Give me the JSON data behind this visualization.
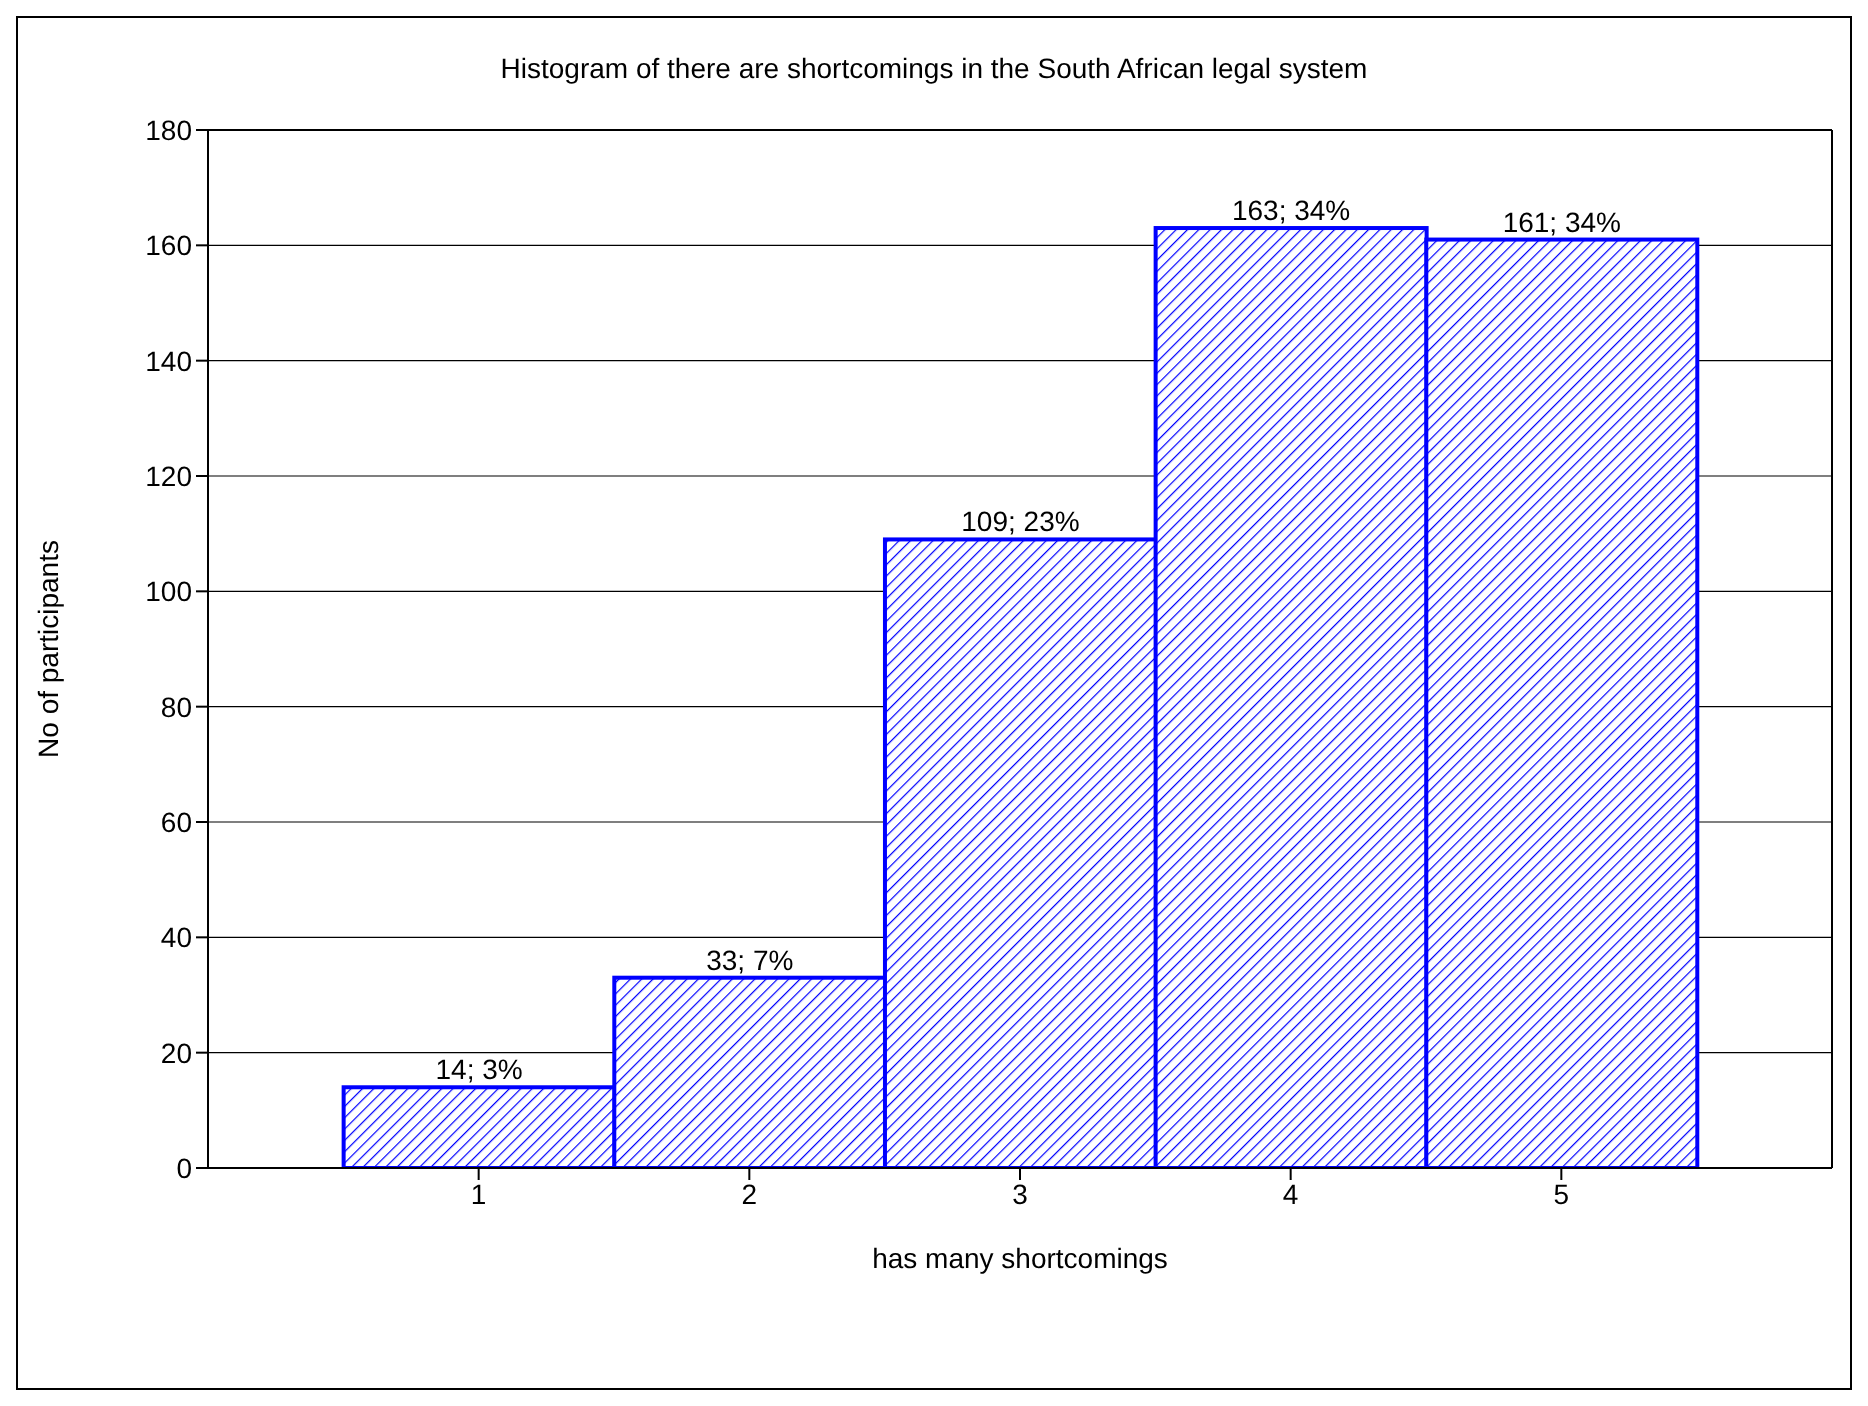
{
  "chart_data": {
    "type": "histogram",
    "title": "Histogram of there are shortcomings in the South African legal system",
    "xlabel": "has many shortcomings",
    "ylabel": "No of participants",
    "bins": [
      0.5,
      1.5,
      2.5,
      3.5,
      4.5,
      5.5
    ],
    "values": [
      14,
      33,
      109,
      163,
      161
    ],
    "value_labels": [
      "14; 3%",
      "33; 7%",
      "109; 23%",
      "163; 34%",
      "161; 34%"
    ],
    "color": "#0000ff",
    "xlim": [
      0,
      6
    ],
    "xticks": [
      1,
      2,
      3,
      4,
      5
    ],
    "ylim": [
      0,
      180
    ],
    "yticks": [
      0,
      20,
      40,
      60,
      80,
      100,
      120,
      140,
      160,
      180
    ],
    "grid": "y"
  }
}
